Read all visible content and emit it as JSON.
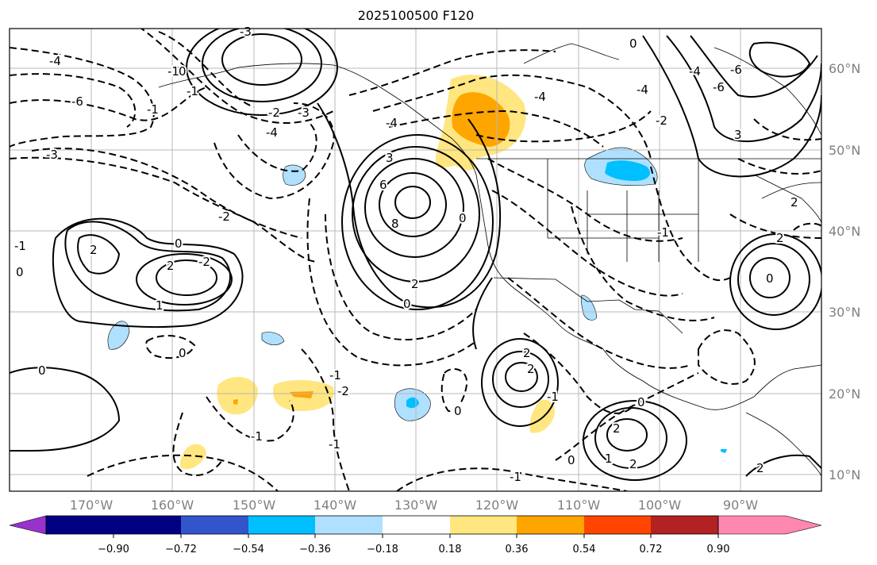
{
  "title": "2025100500 F120",
  "map": {
    "projection": "plate-carree",
    "lon_range": [
      -180,
      -80
    ],
    "lat_range": [
      8,
      65
    ],
    "lon_ticks": [
      "170°W",
      "160°W",
      "150°W",
      "140°W",
      "130°W",
      "120°W",
      "110°W",
      "100°W",
      "90°W"
    ],
    "lat_ticks": [
      "10°N",
      "20°N",
      "30°N",
      "40°N",
      "50°N",
      "60°N"
    ],
    "grid": true,
    "contour_style": {
      "positive": "solid black",
      "negative": "dashed black"
    },
    "contour_labels": [
      "-4",
      "-6",
      "-3",
      "-2",
      "-3",
      "-4",
      "-2",
      "-1",
      "0",
      "-2",
      "-4",
      "-1",
      "-2",
      "-1",
      "0",
      "-1",
      "0",
      "-6",
      "-4",
      "-2",
      "0",
      "2",
      "-2",
      "0",
      "-1",
      "0",
      "-1",
      "-1",
      "0",
      "0",
      "3",
      "0",
      "2",
      "6",
      "8",
      "2",
      "2",
      "0",
      "1",
      "2",
      "1",
      "2",
      "-3",
      "-1",
      "0",
      "-1",
      "-1",
      "-4",
      "-6",
      "-4",
      "3",
      "2",
      "0",
      "2",
      "2",
      "2"
    ]
  },
  "colorbar": {
    "extend": "both",
    "colors": [
      "#9932cc",
      "#000080",
      "#3355cc",
      "#00bfff",
      "#b0e0ff",
      "#ffffff",
      "#ffe680",
      "#ffa500",
      "#ff4500",
      "#b22222",
      "#ff88b0"
    ],
    "tick_labels": [
      "−0.90",
      "−0.72",
      "−0.54",
      "−0.36",
      "−0.18",
      "0.18",
      "0.36",
      "0.54",
      "0.72",
      "0.90"
    ]
  },
  "shading": {
    "light_blue": "#b0e0ff",
    "medium_blue": "#00bfff",
    "light_yellow": "#ffe680",
    "orange": "#ffa500"
  }
}
